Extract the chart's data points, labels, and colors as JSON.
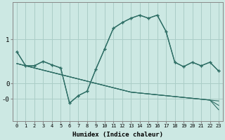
{
  "xlabel": "Humidex (Indice chaleur)",
  "x": [
    0,
    1,
    2,
    3,
    4,
    5,
    6,
    7,
    8,
    9,
    10,
    11,
    12,
    13,
    14,
    15,
    16,
    17,
    18,
    19,
    20,
    21,
    22,
    23
  ],
  "line1": [
    0.72,
    0.4,
    0.4,
    0.5,
    0.42,
    0.35,
    -0.45,
    -0.28,
    -0.18,
    0.32,
    0.78,
    1.25,
    1.38,
    1.48,
    1.55,
    1.48,
    1.55,
    1.18,
    0.48,
    0.38,
    0.48,
    0.4,
    0.48,
    0.28
  ],
  "line2": [
    0.72,
    0.4,
    0.4,
    0.5,
    0.42,
    0.35,
    -0.45,
    -0.28,
    -0.18,
    0.32,
    0.78,
    1.25,
    1.38,
    1.48,
    1.55,
    1.48,
    1.55,
    1.18,
    0.48,
    0.38,
    0.48,
    0.4,
    0.48,
    0.28
  ],
  "linear1": [
    0.45,
    0.4,
    0.35,
    0.3,
    0.25,
    0.2,
    0.15,
    0.1,
    0.05,
    0.0,
    -0.05,
    -0.1,
    -0.15,
    -0.2,
    -0.22,
    -0.24,
    -0.26,
    -0.28,
    -0.3,
    -0.32,
    -0.34,
    -0.36,
    -0.38,
    -0.4
  ],
  "linear2": [
    0.45,
    0.4,
    0.35,
    0.3,
    0.25,
    0.2,
    0.15,
    0.1,
    0.05,
    0.0,
    -0.05,
    -0.1,
    -0.15,
    -0.2,
    -0.22,
    -0.24,
    -0.26,
    -0.28,
    -0.3,
    -0.32,
    -0.34,
    -0.36,
    -0.38,
    -0.5
  ],
  "linear3": [
    0.45,
    0.4,
    0.35,
    0.3,
    0.25,
    0.2,
    0.15,
    0.1,
    0.05,
    0.0,
    -0.05,
    -0.1,
    -0.15,
    -0.2,
    -0.22,
    -0.24,
    -0.26,
    -0.28,
    -0.3,
    -0.32,
    -0.34,
    -0.36,
    -0.38,
    -0.6
  ],
  "bg_color": "#cce8e3",
  "line_color": "#2e6e65",
  "grid_color": "#aacdc7",
  "ylim": [
    -0.85,
    1.85
  ],
  "xlim": [
    -0.5,
    23.5
  ],
  "ytick_positions": [
    1.0,
    0.0,
    -0.35
  ],
  "ytick_labels": [
    "1",
    "0",
    "-0"
  ]
}
